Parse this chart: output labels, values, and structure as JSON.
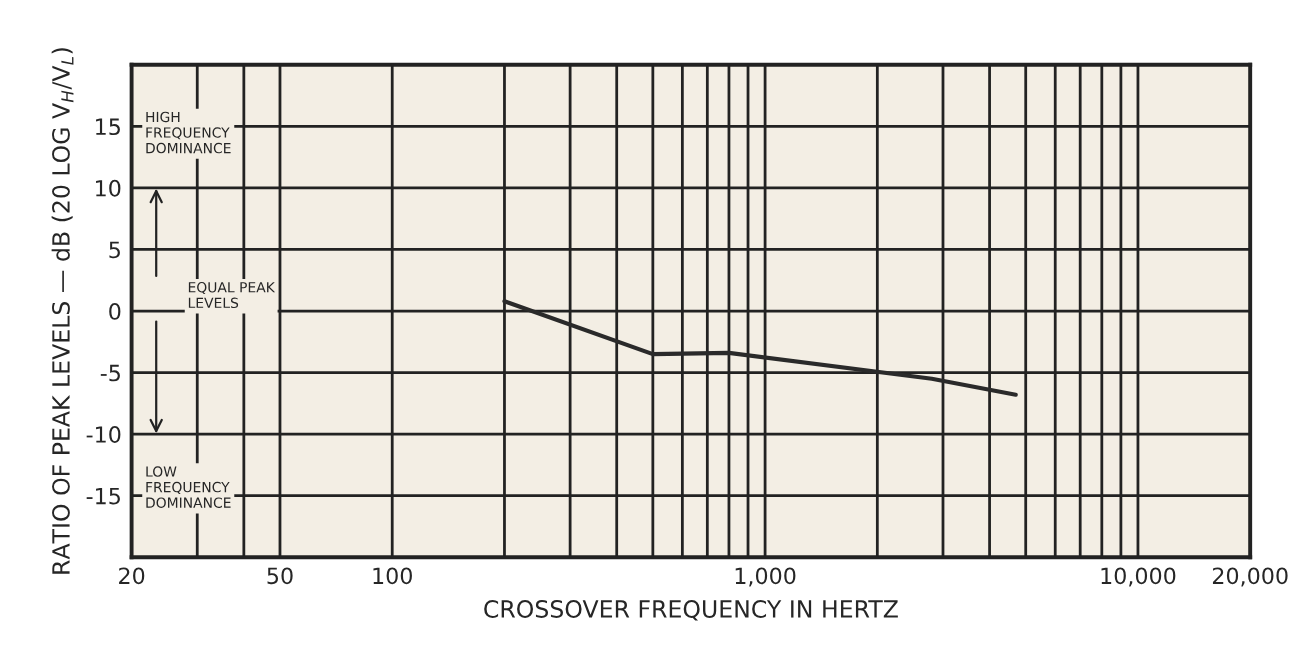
{
  "chart_data": {
    "type": "line",
    "xlabel": "CROSSOVER FREQUENCY IN HERTZ",
    "ylabel": "RATIO OF PEAK LEVELS — dB (20 LOG V$_{H}$/V$_{L}$)",
    "x": [
      200,
      500,
      800,
      2800,
      4700
    ],
    "series": [
      {
        "color": "#2a2a2a",
        "values": [
          0.8,
          -3.5,
          -3.4,
          -5.5,
          -6.8
        ]
      }
    ],
    "log": "x",
    "xlim": [
      20,
      20000
    ],
    "ylim": [
      -20,
      20
    ],
    "xticks": [
      20,
      {
        "value": 30,
        "label": null
      },
      {
        "value": 40,
        "label": null
      },
      50,
      100,
      {
        "value": 200,
        "label": null
      },
      {
        "value": 300,
        "label": null
      },
      {
        "value": 400,
        "label": null
      },
      {
        "value": 500,
        "label": null
      },
      {
        "value": 600,
        "label": null
      },
      {
        "value": 700,
        "label": null
      },
      {
        "value": 800,
        "label": null
      },
      {
        "value": 900,
        "label": null
      },
      {
        "value": 1000,
        "label": "1,000"
      },
      {
        "value": 2000,
        "label": null
      },
      {
        "value": 3000,
        "label": null
      },
      {
        "value": 4000,
        "label": null
      },
      {
        "value": 5000,
        "label": null
      },
      {
        "value": 6000,
        "label": null
      },
      {
        "value": 7000,
        "label": null
      },
      {
        "value": 8000,
        "label": null
      },
      {
        "value": 9000,
        "label": null
      },
      {
        "value": 10000,
        "label": "10,000"
      },
      {
        "value": 20000,
        "label": "20,000"
      }
    ],
    "yticks": [
      -15,
      -10,
      -5,
      0,
      5,
      10,
      15
    ],
    "grid": true,
    "marker": "none",
    "line_style": "solid",
    "legend": false,
    "annotations": [
      "HIGH\nFREQUENCY\nDOMINANCE",
      "EQUAL PEAK\nLEVELS",
      "LOW\nFREQUENCY\nDOMINANCE"
    ]
  }
}
